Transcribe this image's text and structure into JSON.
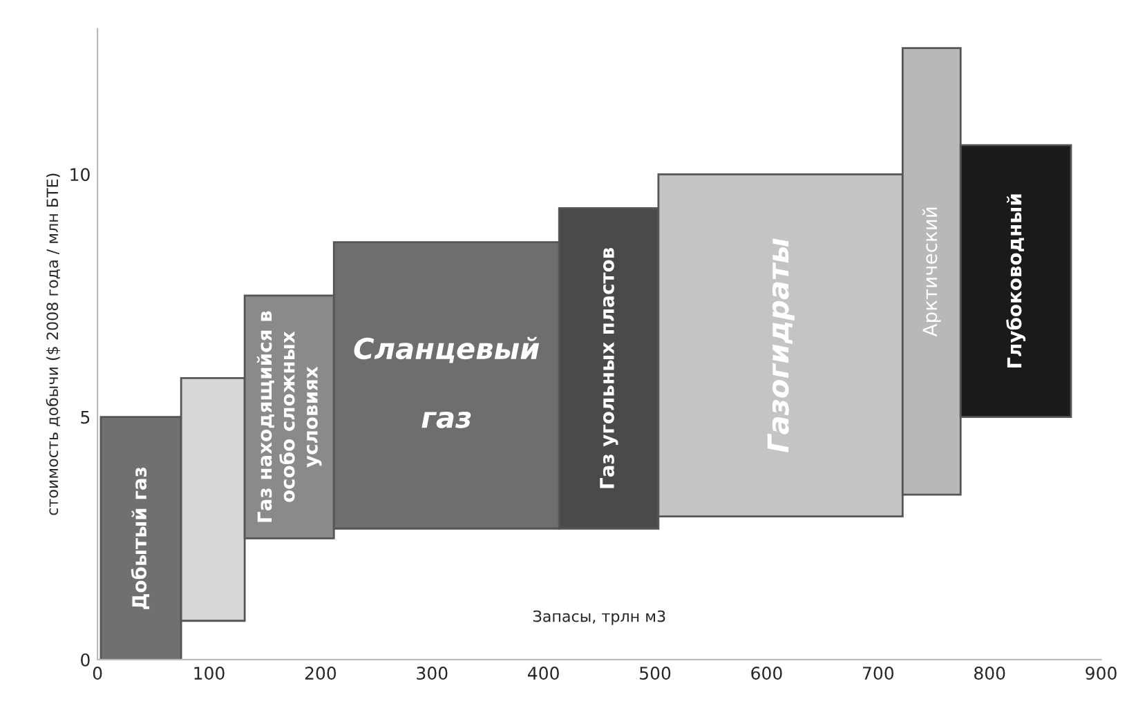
{
  "chart_data": {
    "type": "histogram",
    "xlabel": "Запасы, трлн м3",
    "ylabel": "стоимость добычи ($ 2008 года / млн БТЕ)",
    "categories": [
      "Добытый газ",
      null,
      "Газ находящийся в\nособо сложных\nусловиях",
      "Сланцевый\n\nгаз",
      "Газ угольных пластов",
      "Газогидраты",
      "Арктический",
      "Глубоководный"
    ],
    "bins": [
      3,
      75,
      132,
      212,
      414,
      503,
      722,
      774,
      873
    ],
    "base": [
      0,
      0.8,
      2.5,
      2.7,
      2.7,
      2.95,
      3.4,
      5.0
    ],
    "values": [
      5.0,
      5.0,
      5.0,
      5.9,
      6.6,
      7.05,
      9.2,
      5.6
    ],
    "colors": [
      "#707070",
      "#d8d8d8",
      "#8a8a8a",
      "#6e6e6e",
      "#4a4a4a",
      "#c4c4c4",
      "#b8b8b8",
      "#1a1a1a"
    ],
    "xlim": [
      0,
      900
    ],
    "xticks": [
      0,
      100,
      200,
      300,
      400,
      500,
      600,
      700,
      800,
      900
    ],
    "ylim": [
      0,
      13
    ],
    "yticks": [
      0,
      5,
      10
    ],
    "grid": false,
    "legend": false
  }
}
